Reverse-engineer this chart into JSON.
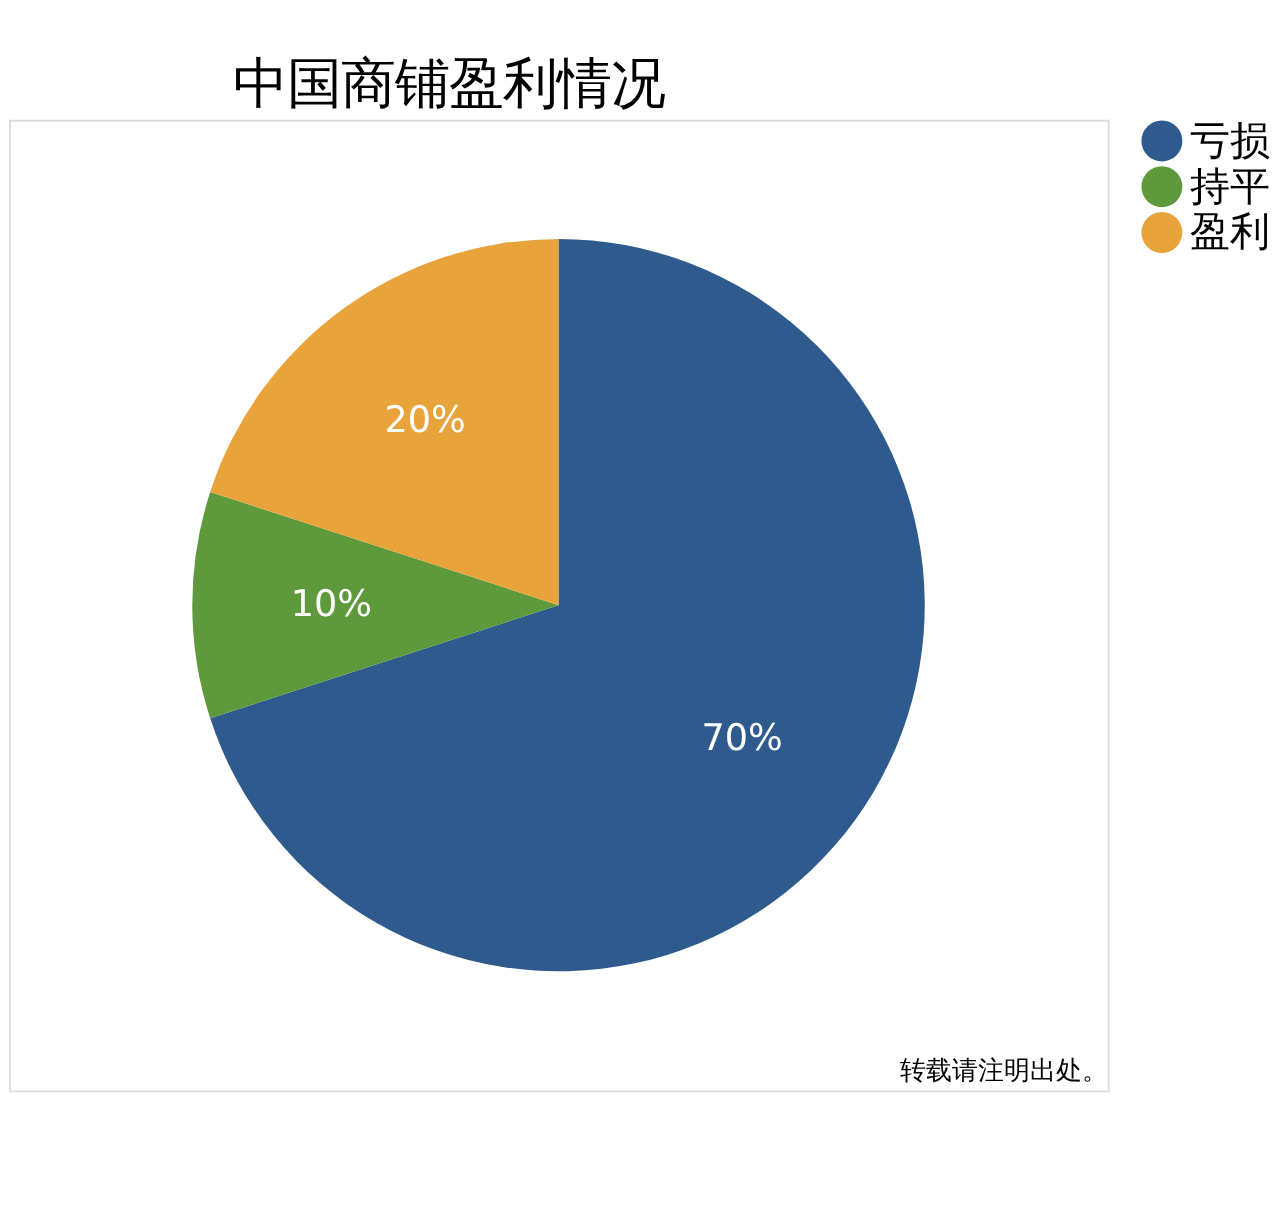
{
  "chart_data": {
    "type": "pie",
    "title": "中国商铺盈利情况",
    "categories": [
      "亏损",
      "持平",
      "盈利"
    ],
    "values": [
      70,
      10,
      20
    ],
    "colors": [
      "#2e5a8e",
      "#5e9a3c",
      "#e8a43a"
    ],
    "value_labels": [
      "70%",
      "10%",
      "20%"
    ],
    "legend": "right",
    "annotations": [
      "转载请注明出处。"
    ]
  }
}
